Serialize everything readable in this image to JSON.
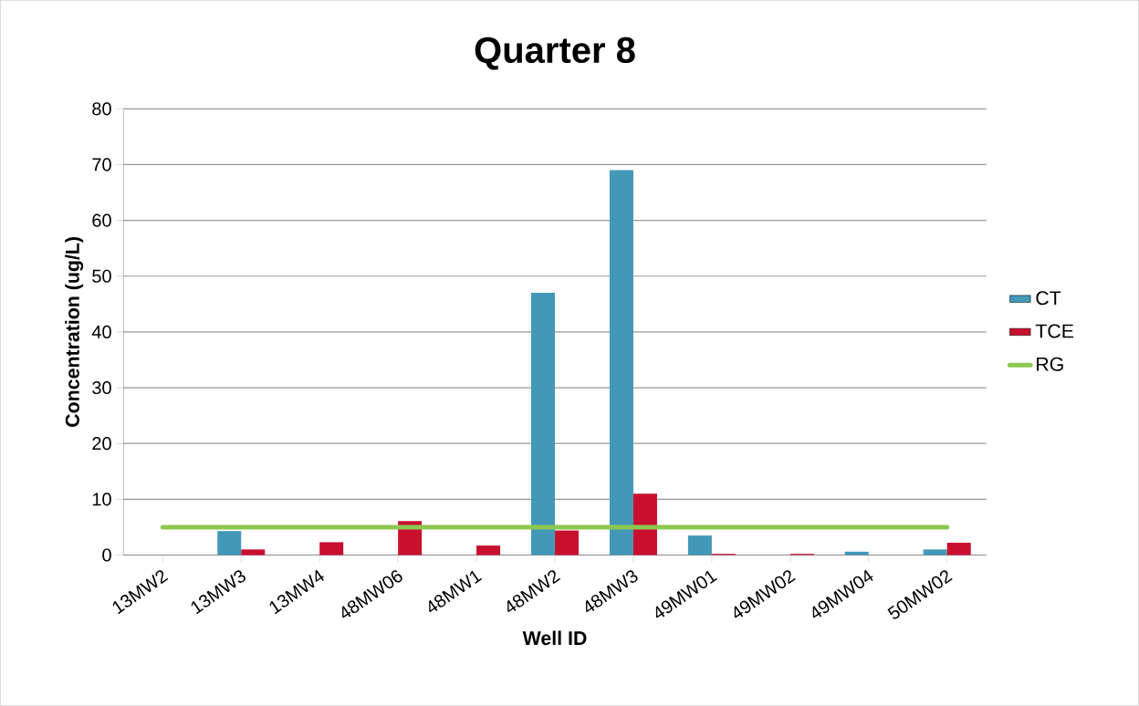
{
  "chart_data": {
    "type": "bar",
    "title": "Quarter 8",
    "xlabel": "Well ID",
    "ylabel": "Concentration (ug/L)",
    "categories": [
      "13MW2",
      "13MW3",
      "13MW4",
      "48MW06",
      "48MW1",
      "48MW2",
      "48MW3",
      "49MW01",
      "49MW02",
      "49MW04",
      "50MW02"
    ],
    "series": [
      {
        "name": "CT",
        "color": "#4398b7",
        "values": [
          null,
          4.3,
          null,
          null,
          null,
          47,
          69,
          3.5,
          null,
          0.6,
          1.0
        ]
      },
      {
        "name": "TCE",
        "color": "#c8102e",
        "values": [
          null,
          1.0,
          2.3,
          6.1,
          1.7,
          4.4,
          11,
          0.2,
          0.2,
          null,
          2.2
        ]
      },
      {
        "name": "RG",
        "type": "line",
        "color": "#8cc850",
        "values": [
          5,
          5,
          5,
          5,
          5,
          5,
          5,
          5,
          5,
          5,
          5
        ]
      }
    ],
    "ylim": [
      0,
      80
    ],
    "yticks": [
      0,
      10,
      20,
      30,
      40,
      50,
      60,
      70,
      80
    ],
    "grid": "y",
    "legend": "right"
  }
}
